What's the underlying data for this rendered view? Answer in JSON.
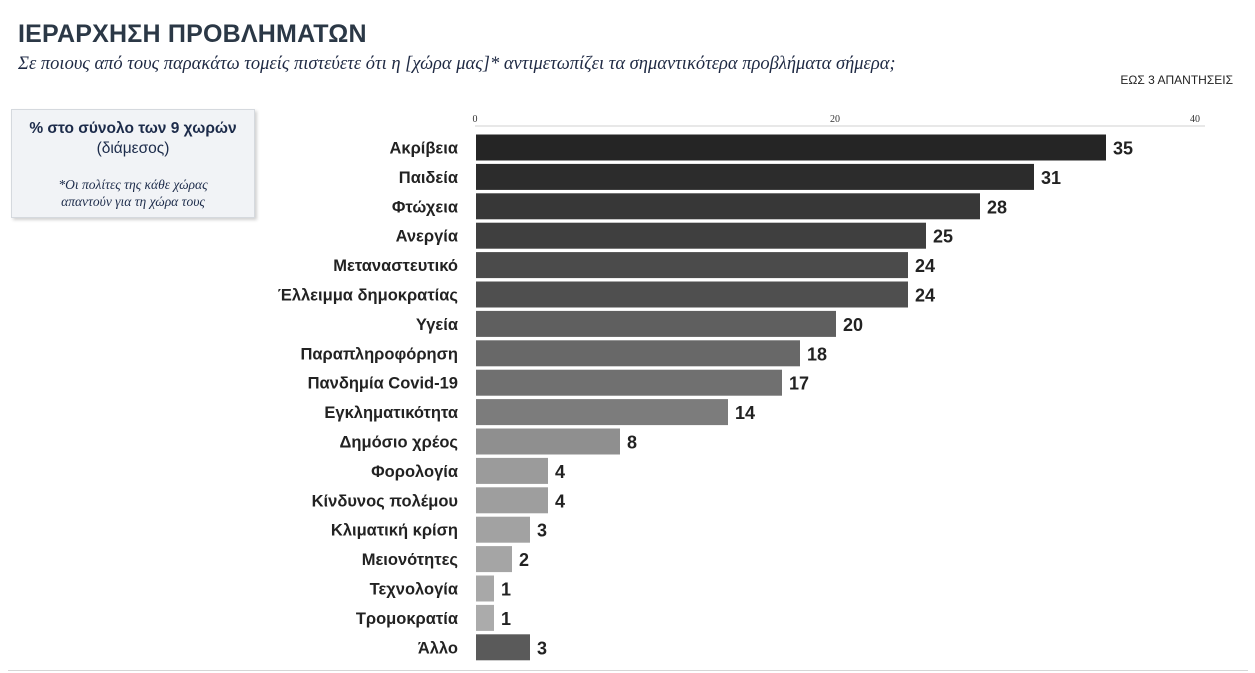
{
  "header": {
    "title": "ΙΕΡΑΡΧΗΣΗ ΠΡΟΒΛΗΜΑΤΩΝ",
    "subtitle": "Σε ποιους από τους παρακάτω τομείς πιστεύετε ότι η [χώρα μας]* αντιμετωπίζει τα σημαντικότερα προβλήματα σήμερα;",
    "responses_note": "ΕΩΣ 3 ΑΠΑΝΤΗΣΕΙΣ"
  },
  "info_box": {
    "line1": "% στο σύνολο των 9 χωρών",
    "line2": "(διάμεσος)",
    "note_line1": "*Οι πολίτες της κάθε χώρας",
    "note_line2": "απαντούν για τη χώρα τους"
  },
  "chart_data": {
    "type": "bar",
    "orientation": "horizontal",
    "categories": [
      "Ακρίβεια",
      "Παιδεία",
      "Φτώχεια",
      "Ανεργία",
      "Μεταναστευτικό",
      "Έλλειμμα δημοκρατίας",
      "Υγεία",
      "Παραπληροφόρηση",
      "Πανδημία Covid-19",
      "Εγκληματικότητα",
      "Δημόσιο χρέος",
      "Φορολογία",
      "Κίνδυνος πολέμου",
      "Κλιματική κρίση",
      "Μειονότητες",
      "Τεχνολογία",
      "Τρομοκρατία",
      "Άλλο"
    ],
    "values": [
      35,
      31,
      28,
      25,
      24,
      24,
      20,
      18,
      17,
      14,
      8,
      4,
      4,
      3,
      2,
      1,
      1,
      3
    ],
    "bar_colors": [
      "#252525",
      "#2c2c2c",
      "#373737",
      "#3f3f3f",
      "#4b4b4b",
      "#4f4f4f",
      "#5f5f5f",
      "#686868",
      "#707070",
      "#7c7c7c",
      "#8f8f8f",
      "#9b9b9b",
      "#9e9e9e",
      "#a2a2a2",
      "#a5a5a5",
      "#a8a8a8",
      "#ababab",
      "#5a5a5a"
    ],
    "xlim": [
      0,
      40
    ],
    "x_ticks": [
      0,
      20,
      40
    ],
    "grid": false,
    "title": "",
    "xlabel": "",
    "ylabel": ""
  }
}
